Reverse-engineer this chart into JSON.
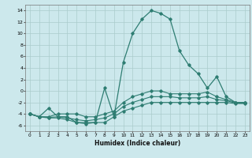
{
  "xlabel": "Humidex (Indice chaleur)",
  "ylabel": "",
  "xlim": [
    -0.5,
    23.5
  ],
  "ylim": [
    -7,
    15
  ],
  "yticks": [
    -6,
    -4,
    -2,
    0,
    2,
    4,
    6,
    8,
    10,
    12,
    14
  ],
  "xticks": [
    0,
    1,
    2,
    3,
    4,
    5,
    6,
    7,
    8,
    9,
    10,
    11,
    12,
    13,
    14,
    15,
    16,
    17,
    18,
    19,
    20,
    21,
    22,
    23
  ],
  "bg_color": "#cce8ec",
  "grid_color": "#aacccc",
  "line_color": "#2e7d72",
  "series": {
    "main": {
      "x": [
        0,
        1,
        2,
        3,
        4,
        5,
        6,
        7,
        8,
        9,
        10,
        11,
        12,
        13,
        14,
        15,
        16,
        17,
        18,
        19,
        20,
        21,
        22,
        23
      ],
      "y": [
        -4,
        -4.5,
        -3,
        -4.5,
        -4.5,
        -5.5,
        -5.5,
        -5.5,
        0.5,
        -4.5,
        5,
        10,
        12.5,
        14,
        13.5,
        12.5,
        7,
        4.5,
        3,
        0.5,
        2.5,
        -1,
        -2,
        -2
      ]
    },
    "min": {
      "x": [
        0,
        1,
        2,
        3,
        4,
        5,
        6,
        7,
        8,
        9,
        10,
        11,
        12,
        13,
        14,
        15,
        16,
        17,
        18,
        19,
        20,
        21,
        22,
        23
      ],
      "y": [
        -4,
        -4.5,
        -4.7,
        -4.7,
        -5,
        -5.5,
        -5.7,
        -5.5,
        -5.5,
        -4.5,
        -3.5,
        -3,
        -2.5,
        -2,
        -2,
        -2,
        -2,
        -2,
        -2,
        -2,
        -2,
        -2,
        -2.2,
        -2.2
      ]
    },
    "max": {
      "x": [
        0,
        1,
        2,
        3,
        4,
        5,
        6,
        7,
        8,
        9,
        10,
        11,
        12,
        13,
        14,
        15,
        16,
        17,
        18,
        19,
        20,
        21,
        22,
        23
      ],
      "y": [
        -4,
        -4.5,
        -4.5,
        -4,
        -4,
        -4,
        -4.5,
        -4.5,
        -4,
        -3.5,
        -2,
        -1,
        -0.5,
        0,
        0,
        -0.5,
        -0.5,
        -0.5,
        -0.5,
        -0.2,
        -1,
        -1.5,
        -2,
        -2
      ]
    },
    "avg": {
      "x": [
        0,
        1,
        2,
        3,
        4,
        5,
        6,
        7,
        8,
        9,
        10,
        11,
        12,
        13,
        14,
        15,
        16,
        17,
        18,
        19,
        20,
        21,
        22,
        23
      ],
      "y": [
        -4,
        -4.5,
        -4.6,
        -4.5,
        -4.7,
        -5,
        -5.2,
        -5,
        -4.7,
        -4,
        -2.7,
        -2,
        -1.5,
        -1,
        -1,
        -1,
        -1.2,
        -1.2,
        -1.2,
        -1,
        -1.5,
        -1.7,
        -2.1,
        -2.1
      ]
    }
  }
}
